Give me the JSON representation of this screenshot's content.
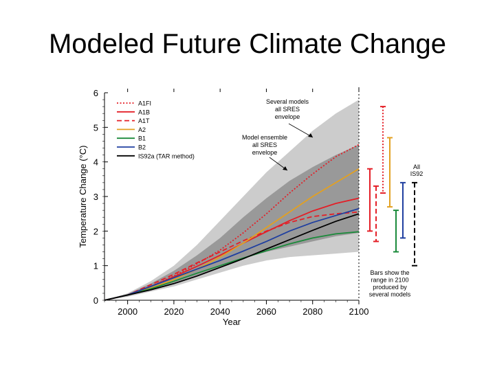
{
  "title": "Modeled Future Climate Change",
  "chart_data": {
    "type": "line",
    "title": "Modeled Future Climate Change",
    "xlabel": "Year",
    "ylabel": "Temperature Change (°C)",
    "xlim": [
      1990,
      2100
    ],
    "ylim": [
      0,
      6
    ],
    "xticks": [
      2000,
      2020,
      2040,
      2060,
      2080,
      2100
    ],
    "yticks": [
      0,
      1,
      2,
      3,
      4,
      5,
      6
    ],
    "x": [
      1990,
      2000,
      2010,
      2020,
      2030,
      2040,
      2050,
      2060,
      2070,
      2080,
      2090,
      2100
    ],
    "series": [
      {
        "name": "A1FI",
        "color": "#e41e26",
        "dash": "dotted",
        "values": [
          0,
          0.15,
          0.4,
          0.7,
          1.05,
          1.45,
          1.95,
          2.5,
          3.1,
          3.65,
          4.15,
          4.5
        ]
      },
      {
        "name": "A1B",
        "color": "#e41e26",
        "dash": "solid",
        "values": [
          0,
          0.15,
          0.4,
          0.68,
          0.98,
          1.3,
          1.65,
          1.98,
          2.3,
          2.58,
          2.8,
          2.95
        ]
      },
      {
        "name": "A1T",
        "color": "#e41e26",
        "dash": "dashed",
        "values": [
          0,
          0.15,
          0.45,
          0.75,
          1.08,
          1.4,
          1.72,
          2.0,
          2.25,
          2.42,
          2.5,
          2.55
        ]
      },
      {
        "name": "A2",
        "color": "#e3a020",
        "dash": "solid",
        "values": [
          0,
          0.15,
          0.35,
          0.6,
          0.9,
          1.25,
          1.65,
          2.1,
          2.55,
          3.0,
          3.4,
          3.8
        ]
      },
      {
        "name": "B1",
        "color": "#1a8a3a",
        "dash": "solid",
        "values": [
          0,
          0.15,
          0.33,
          0.55,
          0.78,
          1.0,
          1.22,
          1.43,
          1.63,
          1.8,
          1.92,
          1.98
        ]
      },
      {
        "name": "B2",
        "color": "#1f3fa0",
        "dash": "solid",
        "values": [
          0,
          0.15,
          0.4,
          0.65,
          0.9,
          1.15,
          1.42,
          1.7,
          2.0,
          2.25,
          2.45,
          2.65
        ]
      },
      {
        "name": "IS92a (TAR method)",
        "color": "#000000",
        "dash": "solid",
        "values": [
          0,
          0.15,
          0.3,
          0.48,
          0.7,
          0.95,
          1.2,
          1.48,
          1.75,
          2.02,
          2.28,
          2.5
        ]
      }
    ],
    "envelopes": [
      {
        "name": "Several models all SRES envelope",
        "color": "#cccccc",
        "lower": [
          0,
          0.1,
          0.25,
          0.4,
          0.6,
          0.8,
          1.0,
          1.15,
          1.25,
          1.3,
          1.35,
          1.4
        ],
        "upper": [
          0,
          0.2,
          0.55,
          1.0,
          1.6,
          2.3,
          3.0,
          3.7,
          4.3,
          4.9,
          5.4,
          5.8
        ]
      },
      {
        "name": "Model ensemble all SRES envelope",
        "color": "#999999",
        "lower": [
          0,
          0.12,
          0.3,
          0.5,
          0.72,
          0.95,
          1.2,
          1.4,
          1.55,
          1.7,
          1.85,
          1.95
        ],
        "upper": [
          0,
          0.18,
          0.48,
          0.85,
          1.3,
          1.8,
          2.4,
          2.95,
          3.45,
          3.85,
          4.2,
          4.5
        ]
      }
    ],
    "range_bars": [
      {
        "name": "A1FI",
        "color": "#e41e26",
        "dash": "dotted",
        "low": 3.1,
        "high": 5.6
      },
      {
        "name": "A1B",
        "color": "#e41e26",
        "dash": "solid",
        "low": 2.0,
        "high": 3.8
      },
      {
        "name": "A1T",
        "color": "#e41e26",
        "dash": "dashed",
        "low": 1.7,
        "high": 3.3
      },
      {
        "name": "A2",
        "color": "#e3a020",
        "dash": "solid",
        "low": 2.7,
        "high": 4.7
      },
      {
        "name": "B1",
        "color": "#1a8a3a",
        "dash": "solid",
        "low": 1.4,
        "high": 2.6
      },
      {
        "name": "B2",
        "color": "#1f3fa0",
        "dash": "solid",
        "low": 1.8,
        "high": 3.4
      },
      {
        "name": "All IS92",
        "color": "#000000",
        "dash": "dashed",
        "low": 1.0,
        "high": 3.4
      }
    ],
    "annotations": {
      "several_models": [
        "Several models",
        "all SRES",
        "envelope"
      ],
      "model_ensemble": [
        "Model ensemble",
        "all SRES",
        "envelope"
      ],
      "all_is92": [
        "All",
        "IS92"
      ],
      "bars_note": [
        "Bars show the",
        "range in 2100",
        "produced by",
        "several models"
      ]
    }
  }
}
